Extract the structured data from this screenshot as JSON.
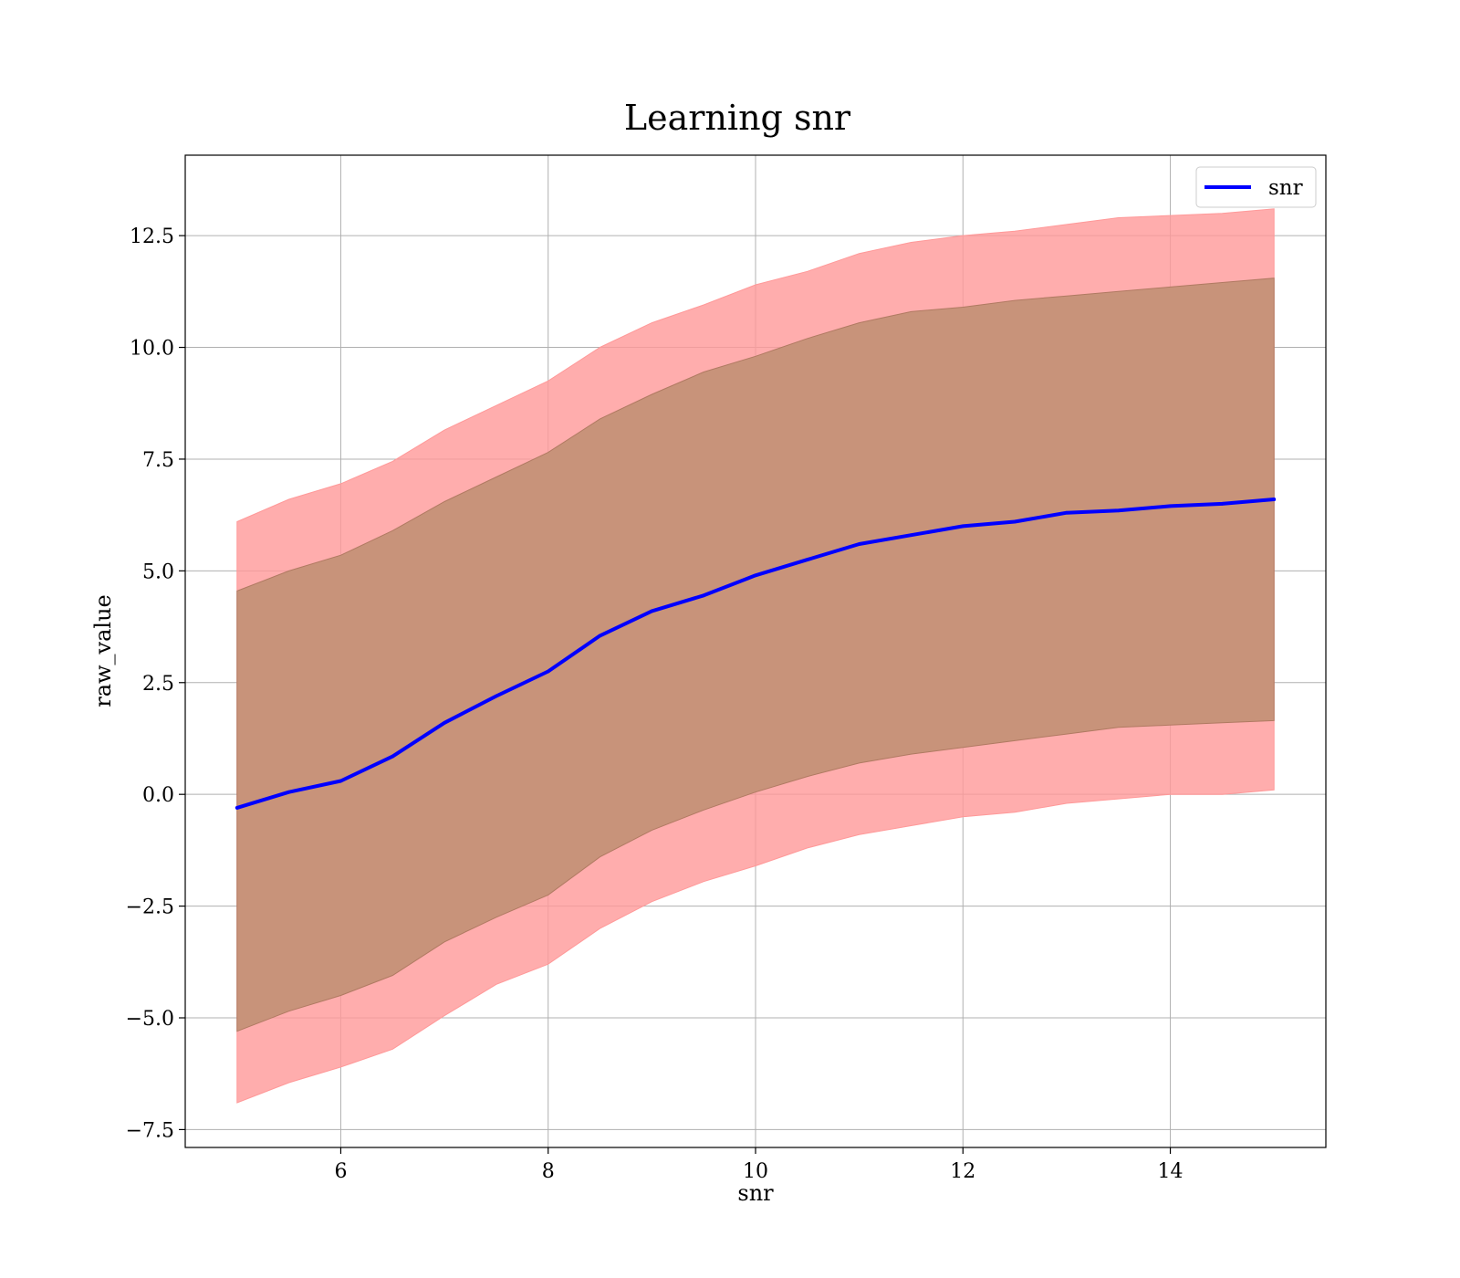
{
  "chart_data": {
    "type": "line",
    "title": "Learning snr",
    "xlabel": "snr",
    "ylabel": "raw_value",
    "xlim": [
      4.5,
      15.5
    ],
    "ylim": [
      -7.9,
      14.3
    ],
    "x_ticks": [
      6,
      8,
      10,
      12,
      14
    ],
    "x_tick_labels": [
      "6",
      "8",
      "10",
      "12",
      "14"
    ],
    "y_ticks": [
      -7.5,
      -5.0,
      -2.5,
      0.0,
      2.5,
      5.0,
      7.5,
      10.0,
      12.5
    ],
    "y_tick_labels": [
      "−7.5",
      "−5.0",
      "−2.5",
      "0.0",
      "2.5",
      "5.0",
      "7.5",
      "10.0",
      "12.5"
    ],
    "grid": true,
    "legend_position": "top-right",
    "colors": {
      "line": "#0000ff",
      "outer_band": "#ff9999",
      "inner_band": "#c8937a",
      "grid": "#b0b0b0"
    },
    "x": [
      5.0,
      5.5,
      6.0,
      6.5,
      7.0,
      7.5,
      8.0,
      8.5,
      9.0,
      9.5,
      10.0,
      10.5,
      11.0,
      11.5,
      12.0,
      12.5,
      13.0,
      13.5,
      14.0,
      14.5,
      15.0
    ],
    "series": [
      {
        "name": "snr",
        "values": [
          -0.3,
          0.05,
          0.3,
          0.85,
          1.6,
          2.2,
          2.75,
          3.55,
          4.1,
          4.45,
          4.9,
          5.25,
          5.6,
          5.8,
          6.0,
          6.1,
          6.3,
          6.35,
          6.45,
          6.5,
          6.6
        ],
        "outer_upper": [
          6.1,
          6.6,
          6.95,
          7.45,
          8.15,
          8.7,
          9.25,
          10.0,
          10.55,
          10.95,
          11.4,
          11.7,
          12.1,
          12.35,
          12.5,
          12.6,
          12.75,
          12.9,
          12.95,
          13.0,
          13.1
        ],
        "outer_lower": [
          -6.9,
          -6.45,
          -6.1,
          -5.7,
          -4.95,
          -4.25,
          -3.8,
          -3.0,
          -2.4,
          -1.95,
          -1.6,
          -1.2,
          -0.9,
          -0.7,
          -0.5,
          -0.4,
          -0.2,
          -0.1,
          0.0,
          0.0,
          0.1
        ],
        "inner_upper": [
          4.55,
          5.0,
          5.35,
          5.9,
          6.55,
          7.1,
          7.65,
          8.4,
          8.95,
          9.45,
          9.8,
          10.2,
          10.55,
          10.8,
          10.9,
          11.05,
          11.15,
          11.25,
          11.35,
          11.45,
          11.55
        ],
        "inner_lower": [
          -5.3,
          -4.85,
          -4.5,
          -4.05,
          -3.3,
          -2.75,
          -2.25,
          -1.4,
          -0.8,
          -0.35,
          0.05,
          0.4,
          0.7,
          0.9,
          1.05,
          1.2,
          1.35,
          1.5,
          1.55,
          1.6,
          1.65
        ]
      }
    ]
  }
}
